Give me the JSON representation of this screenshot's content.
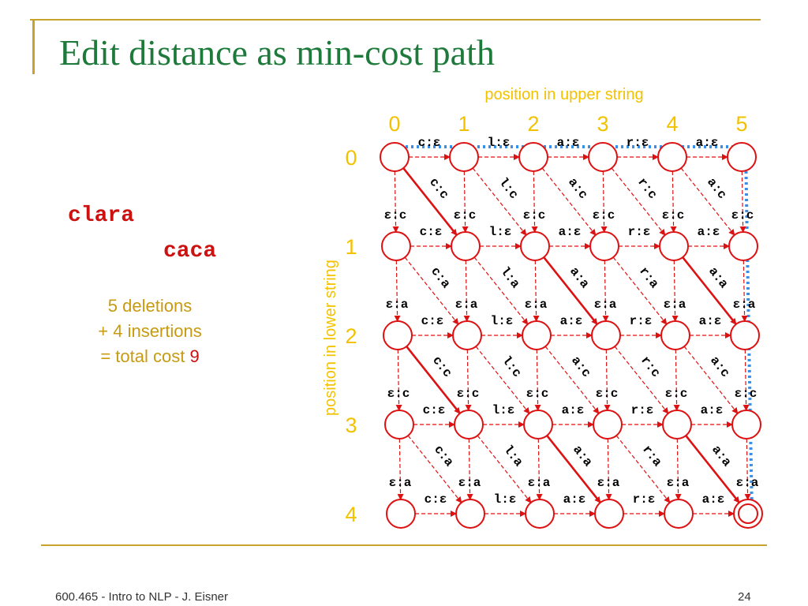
{
  "slide": {
    "title": "Edit distance as min-cost path",
    "upper_word": "clara",
    "lower_word": "caca",
    "summary_line1": "5 deletions",
    "summary_line2": "+ 4 insertions",
    "summary_line3_prefix": "= total cost ",
    "summary_total": "9",
    "footer_left": "600.465 - Intro to NLP - J. Eisner",
    "page_number": "24"
  },
  "lattice": {
    "x_axis_label": "position in upper string",
    "y_axis_label": "position in lower string",
    "col_indices": [
      "0",
      "1",
      "2",
      "3",
      "4",
      "5"
    ],
    "row_indices": [
      "0",
      "1",
      "2",
      "3",
      "4"
    ],
    "deletion_labels": [
      "c:ε",
      "l:ε",
      "a:ε",
      "r:ε",
      "a:ε"
    ],
    "insertion_labels": [
      "ε:c",
      "ε:a",
      "ε:c",
      "ε:a"
    ],
    "substitution_labels": [
      [
        "c:c",
        "l:c",
        "a:c",
        "r:c",
        "a:c"
      ],
      [
        "c:a",
        "l:a",
        "a:a",
        "r:a",
        "a:a"
      ],
      [
        "c:c",
        "l:c",
        "a:c",
        "r:c",
        "a:c"
      ],
      [
        "c:a",
        "l:a",
        "a:a",
        "r:a",
        "a:a"
      ]
    ],
    "highlighted_diagonals": [
      [
        0,
        0
      ],
      [
        1,
        2
      ],
      [
        1,
        4
      ],
      [
        2,
        0
      ],
      [
        3,
        2
      ],
      [
        3,
        4
      ]
    ],
    "colors": {
      "node": "#dd1111",
      "arrow": "#dd1111",
      "path": "#3a8ee6",
      "axis_text": "#f2c200",
      "label": "#000000"
    }
  }
}
